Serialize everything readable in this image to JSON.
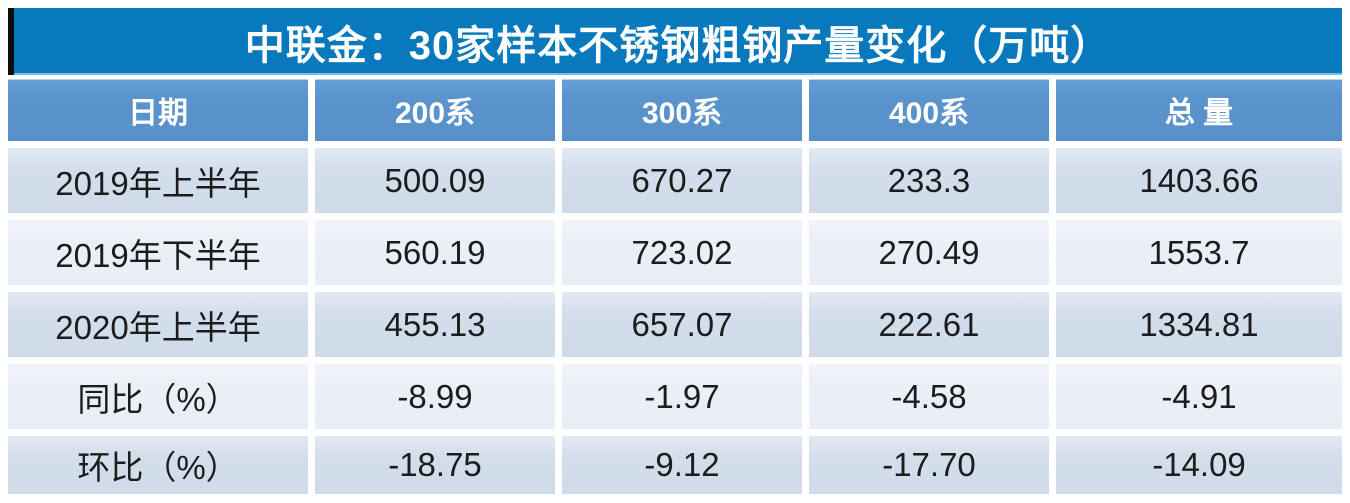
{
  "title": "中联金：30家样本不锈钢粗钢产量变化（万吨）",
  "colors": {
    "title_bg": "#0979BE",
    "title_left_bar": "#0D0D0D",
    "header_bg": "#5B94CD",
    "row_odd_bg": "#D3DEEC",
    "row_even_bg": "#EBEFF6",
    "header_text": "#FFFFFF",
    "body_text": "#1C1C1C"
  },
  "chart_data": {
    "type": "table",
    "title": "中联金：30家样本不锈钢粗钢产量变化（万吨）",
    "columns": [
      "日期",
      "200系",
      "300系",
      "400系",
      "总 量"
    ],
    "rows": [
      {
        "label": "2019年上半年",
        "values": [
          "500.09",
          "670.27",
          "233.3",
          "1403.66"
        ]
      },
      {
        "label": "2019年下半年",
        "values": [
          "560.19",
          "723.02",
          "270.49",
          "1553.7"
        ]
      },
      {
        "label": "2020年上半年",
        "values": [
          "455.13",
          "657.07",
          "222.61",
          "1334.81"
        ]
      },
      {
        "label": "同比（%）",
        "values": [
          "-8.99",
          "-1.97",
          "-4.58",
          "-4.91"
        ]
      },
      {
        "label": "环比（%）",
        "values": [
          "-18.75",
          "-9.12",
          "-17.70",
          "-14.09"
        ]
      }
    ]
  }
}
